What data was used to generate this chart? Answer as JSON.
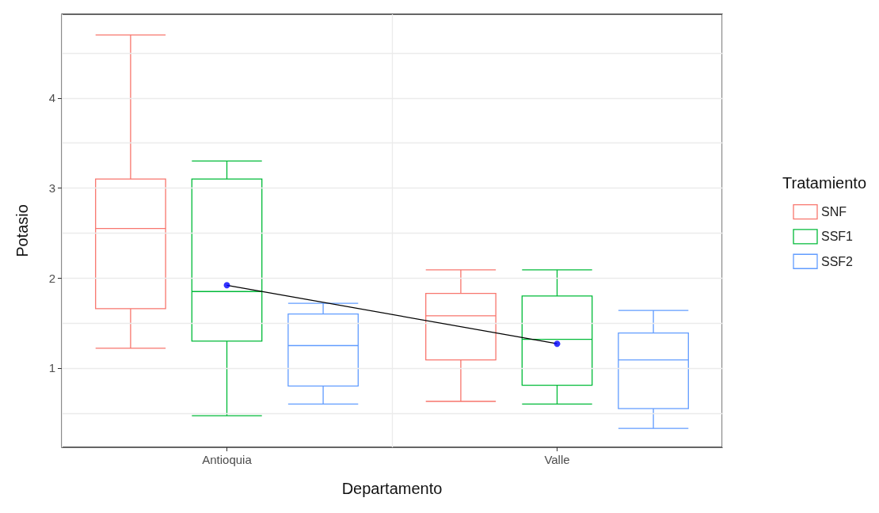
{
  "chart_data": {
    "type": "box",
    "xlabel": "Departamento",
    "ylabel": "Potasio",
    "legend_title": "Tratamiento",
    "legend": "right",
    "grid": true,
    "categories": [
      "Antioquia",
      "Valle"
    ],
    "ylim": [
      0.12,
      4.93
    ],
    "yticks": [
      {
        "value": 0.5,
        "label": null
      },
      1,
      {
        "value": 1.5,
        "label": null
      },
      2,
      {
        "value": 2.5,
        "label": null
      },
      3,
      {
        "value": 3.5,
        "label": null
      },
      4,
      {
        "value": 4.5,
        "label": null
      }
    ],
    "series": [
      {
        "name": "SNF",
        "color": "#f8766d",
        "boxes": [
          {
            "low": 1.22,
            "q1": 1.66,
            "median": 2.55,
            "q3": 3.1,
            "high": 4.7
          },
          {
            "low": 0.63,
            "q1": 1.09,
            "median": 1.58,
            "q3": 1.83,
            "high": 2.09
          }
        ]
      },
      {
        "name": "SSF1",
        "color": "#00ba38",
        "boxes": [
          {
            "low": 0.47,
            "q1": 1.3,
            "median": 1.85,
            "q3": 3.1,
            "high": 3.3
          },
          {
            "low": 0.6,
            "q1": 0.81,
            "median": 1.32,
            "q3": 1.8,
            "high": 2.09
          }
        ]
      },
      {
        "name": "SSF2",
        "color": "#619cff",
        "boxes": [
          {
            "low": 0.6,
            "q1": 0.8,
            "median": 1.25,
            "q3": 1.6,
            "high": 1.72
          },
          {
            "low": 0.33,
            "q1": 0.55,
            "median": 1.09,
            "q3": 1.39,
            "high": 1.64
          }
        ]
      },
      {
        "type": "line",
        "color": "#000000",
        "marker": "none",
        "x": [
          "Antioquia",
          "Valle"
        ],
        "values": [
          1.92,
          1.27
        ]
      },
      {
        "type": "scatter",
        "color": "#0000ff",
        "marker": "circle",
        "x": [
          "Antioquia",
          "Valle"
        ],
        "values": [
          1.92,
          1.27
        ]
      }
    ]
  }
}
